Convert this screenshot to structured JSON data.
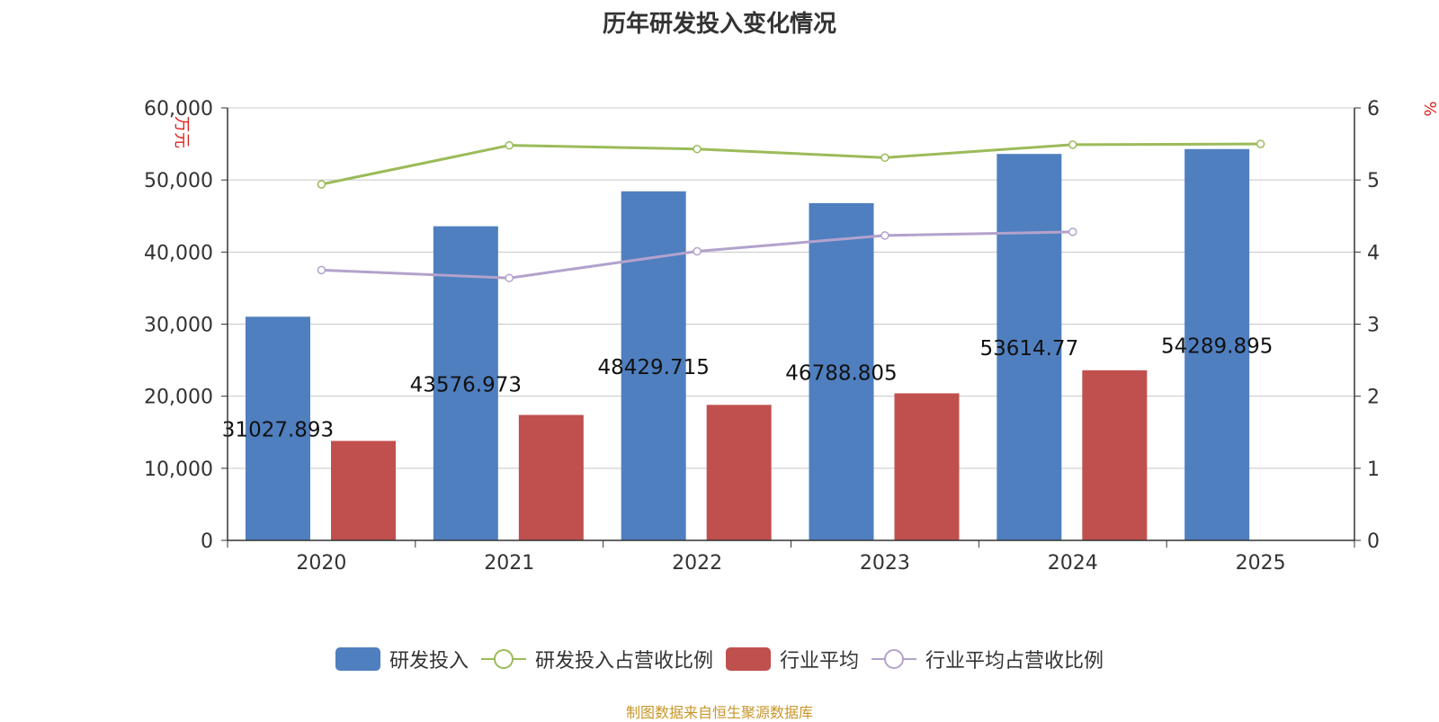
{
  "title": "历年研发投入变化情况",
  "source": "制图数据来自恒生聚源数据库",
  "colors": {
    "rd": "#4f7fbf",
    "rd_ratio": "#9bbb59",
    "industry": "#c0504d",
    "industry_ratio": "#b3a2cc",
    "axis_unit": "#e0201b"
  },
  "chart_data": {
    "type": "bar",
    "categories": [
      "2020",
      "2021",
      "2022",
      "2023",
      "2024",
      "2025"
    ],
    "left_axis_unit": "万元",
    "right_axis_unit": "%",
    "y_left": {
      "min": 0,
      "max": 60000,
      "ticks": [
        "0",
        "10,000",
        "20,000",
        "30,000",
        "40,000",
        "50,000",
        "60,000"
      ]
    },
    "y_right": {
      "min": 0,
      "max": 6,
      "ticks": [
        "0",
        "1",
        "2",
        "3",
        "4",
        "5",
        "6"
      ]
    },
    "grid": true,
    "legend_position": "bottom",
    "series": [
      {
        "name": "研发投入",
        "kind": "bar",
        "axis": "left",
        "values": [
          31027.893,
          43576.973,
          48429.715,
          46788.805,
          53614.77,
          54289.895
        ],
        "labels": [
          "31027.893",
          "43576.973",
          "48429.715",
          "46788.805",
          "53614.77",
          "54289.895"
        ]
      },
      {
        "name": "研发投入占营收比例",
        "kind": "line",
        "axis": "right",
        "values": [
          4.94,
          5.48,
          5.43,
          5.31,
          5.49,
          5.5
        ]
      },
      {
        "name": "行业平均",
        "kind": "bar",
        "axis": "left",
        "values": [
          13800,
          17400,
          18800,
          20400,
          23600,
          null
        ]
      },
      {
        "name": "行业平均占营收比例",
        "kind": "line",
        "axis": "right",
        "values": [
          3.75,
          3.64,
          4.01,
          4.23,
          4.28,
          null
        ]
      }
    ]
  }
}
